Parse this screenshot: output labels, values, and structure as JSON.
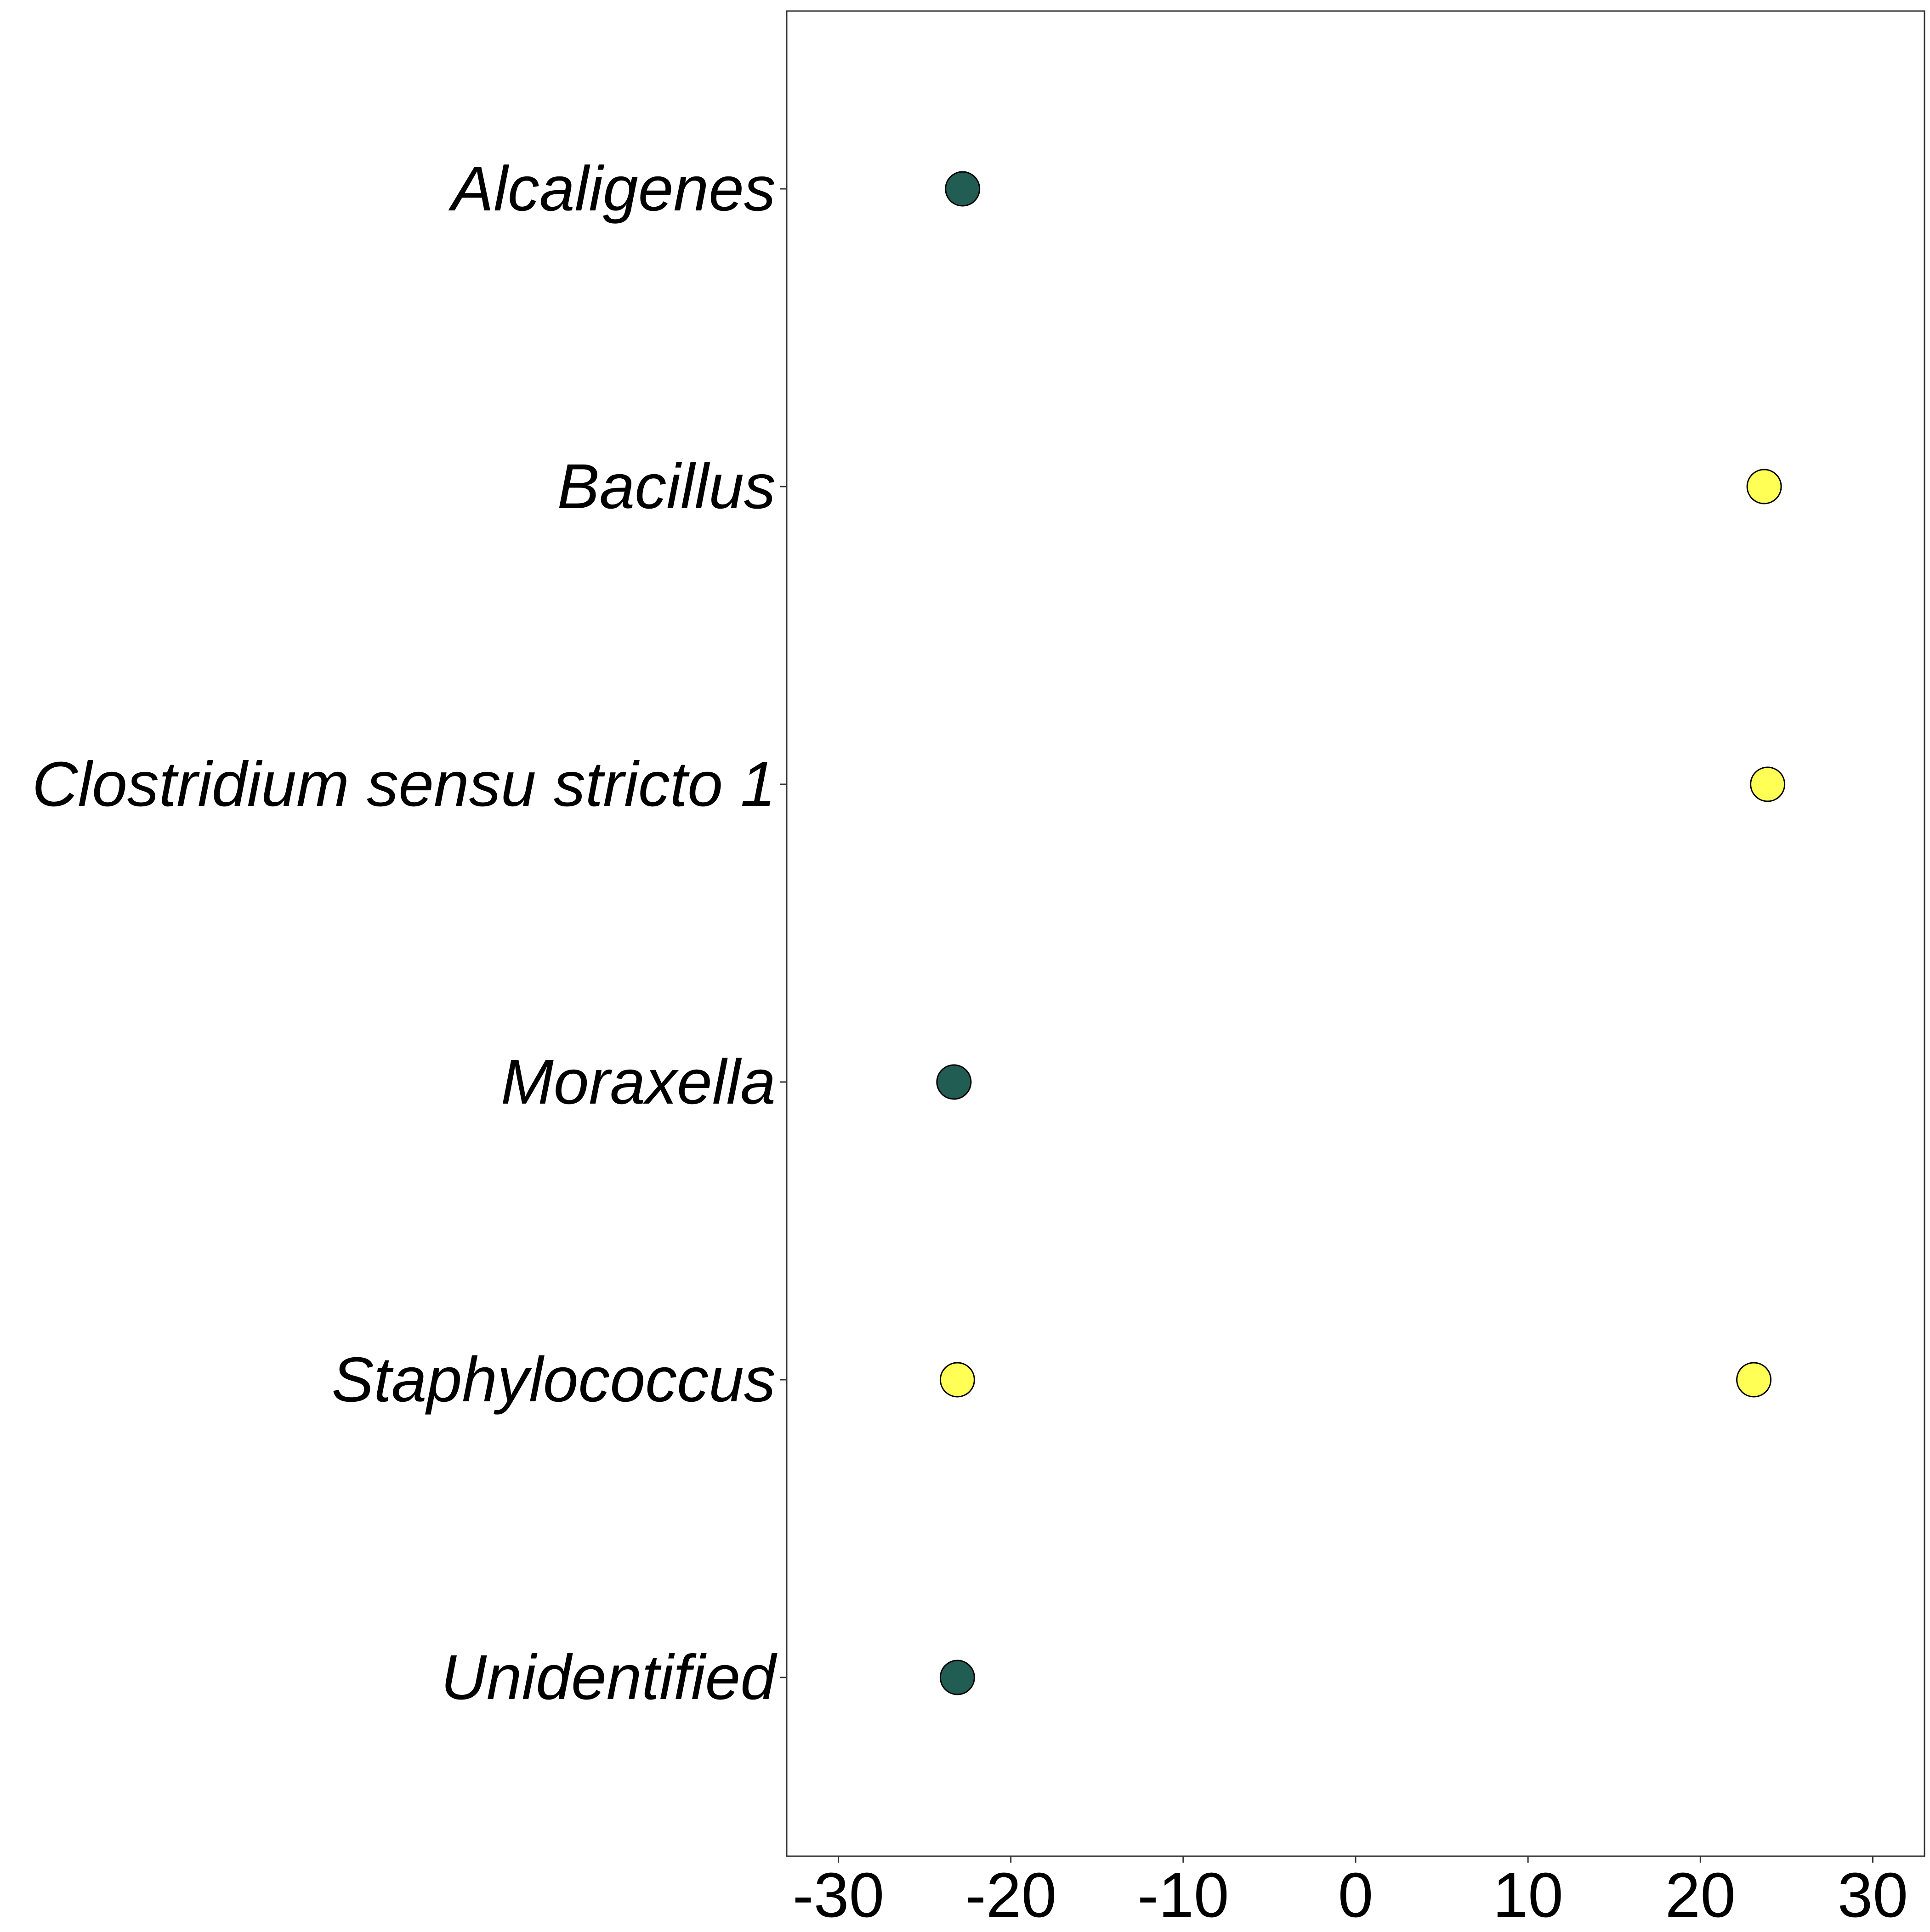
{
  "chart_data": {
    "type": "scatter",
    "title": "",
    "xlabel": "",
    "ylabel": "",
    "xlim": [
      -33,
      33
    ],
    "x_ticks": [
      -30,
      -20,
      -10,
      0,
      10,
      20,
      30
    ],
    "x_tick_labels": [
      "-30",
      "-20",
      "-10",
      "0",
      "10",
      "20",
      "30"
    ],
    "categories": [
      "Alcaligenes",
      "Bacillus",
      "Clostridium sensu stricto 1",
      "Moraxella",
      "Staphylococcus",
      "Unidentified"
    ],
    "points": [
      {
        "category": "Alcaligenes",
        "x": -22.8,
        "color": "#225d53"
      },
      {
        "category": "Bacillus",
        "x": 23.7,
        "color": "#ffff55"
      },
      {
        "category": "Clostridium sensu stricto 1",
        "x": 23.9,
        "color": "#ffff55"
      },
      {
        "category": "Moraxella",
        "x": -23.3,
        "color": "#225d53"
      },
      {
        "category": "Staphylococcus",
        "x": -23.1,
        "color": "#ffff55"
      },
      {
        "category": "Staphylococcus",
        "x": 23.1,
        "color": "#ffff55"
      },
      {
        "category": "Unidentified",
        "x": -23.1,
        "color": "#225d53"
      }
    ],
    "grid": false,
    "legend": "none",
    "colors": {
      "dark_group": "#225d53",
      "light_group": "#ffff55",
      "point_outline": "#000000",
      "panel_border": "#333333"
    }
  }
}
